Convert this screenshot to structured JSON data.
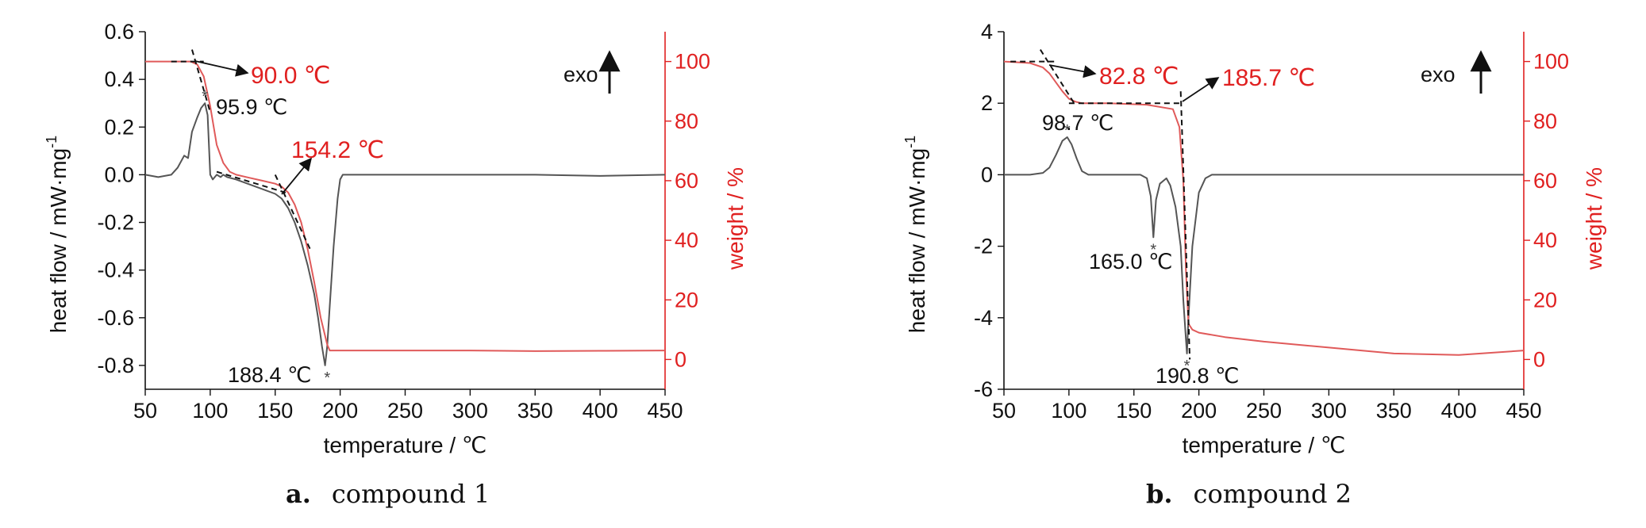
{
  "chart_data": [
    {
      "type": "line",
      "panel": "a",
      "caption_letter": "a.",
      "caption_text": "compound 1",
      "xlabel": "temperature / ℃",
      "ylabel_left": "heat flow / mW·mg",
      "ylabel_left_sup": "-1",
      "ylabel_right": "weight / %",
      "xlim": [
        50,
        450
      ],
      "ylim_left": [
        -0.9,
        0.6
      ],
      "ylim_right": [
        -10,
        110
      ],
      "x_ticks": [
        50,
        100,
        150,
        200,
        250,
        300,
        350,
        400,
        450
      ],
      "x_tick_labels": [
        "50",
        "100",
        "150",
        "200",
        "250",
        "300",
        "350",
        "400",
        "450"
      ],
      "y_left_ticks": [
        0.6,
        0.4,
        0.2,
        0.0,
        -0.2,
        -0.4,
        -0.6,
        -0.8
      ],
      "y_left_tick_labels": [
        "0.6",
        "0.4",
        "0.2",
        "0.0",
        "-0.2",
        "-0.4",
        "-0.6",
        "-0.8"
      ],
      "y_right_ticks": [
        100,
        80,
        60,
        40,
        20,
        0
      ],
      "y_right_tick_labels": [
        "100",
        "80",
        "60",
        "40",
        "20",
        "0"
      ],
      "exo_label": "exo",
      "series": [
        {
          "axis": "left",
          "color": "#555555",
          "x": [
            50,
            60,
            70,
            75,
            80,
            83,
            86,
            90,
            93,
            95.9,
            98,
            100,
            102,
            105,
            108,
            110,
            113,
            120,
            130,
            140,
            150,
            155,
            160,
            165,
            170,
            175,
            180,
            183,
            186,
            188.4,
            190,
            192,
            195,
            198,
            200,
            202,
            210,
            220,
            250,
            300,
            350,
            400,
            450
          ],
          "y": [
            0.0,
            -0.01,
            0.0,
            0.03,
            0.08,
            0.07,
            0.18,
            0.24,
            0.28,
            0.3,
            0.25,
            0.0,
            -0.02,
            0.0,
            -0.01,
            0.0,
            -0.01,
            -0.02,
            -0.04,
            -0.06,
            -0.08,
            -0.1,
            -0.14,
            -0.2,
            -0.28,
            -0.38,
            -0.5,
            -0.6,
            -0.72,
            -0.8,
            -0.72,
            -0.55,
            -0.3,
            -0.1,
            -0.02,
            0.0,
            0.0,
            0.0,
            0.0,
            0.0,
            0.0,
            -0.005,
            0.0
          ]
        },
        {
          "axis": "right",
          "color": "#e05a5a",
          "x": [
            50,
            70,
            85,
            90,
            95,
            100,
            105,
            110,
            115,
            120,
            130,
            140,
            150,
            155,
            160,
            165,
            170,
            175,
            180,
            185,
            190,
            192,
            200,
            250,
            300,
            350,
            400,
            450
          ],
          "y": [
            100,
            100,
            100,
            99,
            95,
            85,
            72,
            66,
            63,
            62,
            61,
            60,
            59,
            58,
            56,
            52,
            46,
            37,
            26,
            14,
            5,
            3,
            3,
            3,
            3,
            2.8,
            2.9,
            3
          ]
        }
      ],
      "tangent_lines": [
        {
          "points": [
            [
              70,
              100
            ],
            [
              95,
              100
            ]
          ]
        },
        {
          "points": [
            [
              86,
              104
            ],
            [
              100,
              83
            ]
          ]
        },
        {
          "points": [
            [
              105,
              63
            ],
            [
              158,
              56
            ]
          ]
        },
        {
          "points": [
            [
              150,
              62
            ],
            [
              178,
              36
            ]
          ]
        }
      ],
      "annotations": [
        {
          "text": "90.0 ℃",
          "color": "#e02020",
          "type": "onset"
        },
        {
          "text": "95.9 ℃",
          "color": "#111111",
          "type": "peak"
        },
        {
          "text": "154.2 ℃",
          "color": "#e02020",
          "type": "onset"
        },
        {
          "text": "188.4 ℃",
          "color": "#111111",
          "type": "peak"
        }
      ],
      "markers": [
        {
          "text": "*",
          "x": 95.9,
          "y": 0.3
        },
        {
          "text": "*",
          "x": 190,
          "y": -0.8
        }
      ]
    },
    {
      "type": "line",
      "panel": "b",
      "caption_letter": "b.",
      "caption_text": "compound 2",
      "xlabel": "temperature / ℃",
      "ylabel_left": "heat flow / mW·mg",
      "ylabel_left_sup": "-1",
      "ylabel_right": "weight / %",
      "xlim": [
        50,
        450
      ],
      "ylim_left": [
        -6,
        4
      ],
      "ylim_right": [
        -10,
        110
      ],
      "x_ticks": [
        50,
        100,
        150,
        200,
        250,
        300,
        350,
        400,
        450
      ],
      "x_tick_labels": [
        "50",
        "100",
        "150",
        "200",
        "250",
        "300",
        "350",
        "400",
        "450"
      ],
      "y_left_ticks": [
        4,
        2,
        0,
        -2,
        -4,
        -6
      ],
      "y_left_tick_labels": [
        "4",
        "2",
        "0",
        "-2",
        "-4",
        "-6"
      ],
      "y_right_ticks": [
        100,
        80,
        60,
        40,
        20,
        0
      ],
      "y_right_tick_labels": [
        "100",
        "80",
        "60",
        "40",
        "20",
        "0"
      ],
      "exo_label": "exo",
      "series": [
        {
          "axis": "left",
          "color": "#555555",
          "x": [
            50,
            70,
            80,
            85,
            90,
            95,
            98.7,
            102,
            106,
            110,
            115,
            120,
            140,
            155,
            160,
            163,
            165,
            167,
            170,
            175,
            178,
            182,
            186,
            188,
            190,
            190.8,
            192,
            195,
            200,
            205,
            210,
            220,
            250,
            300,
            350,
            400,
            450
          ],
          "y": [
            0.0,
            0.0,
            0.05,
            0.2,
            0.55,
            0.95,
            1.05,
            0.85,
            0.45,
            0.1,
            0.0,
            0.0,
            0.0,
            0.0,
            -0.1,
            -0.6,
            -1.75,
            -0.7,
            -0.25,
            -0.1,
            -0.3,
            -0.9,
            -2.0,
            -3.5,
            -4.6,
            -5.0,
            -4.0,
            -2.0,
            -0.5,
            -0.1,
            0.0,
            0.0,
            0.0,
            0.0,
            0.0,
            0.0,
            0.0
          ]
        },
        {
          "axis": "right",
          "color": "#e05a5a",
          "x": [
            50,
            70,
            80,
            85,
            90,
            95,
            100,
            105,
            110,
            115,
            130,
            160,
            180,
            185,
            188,
            190,
            192,
            195,
            200,
            220,
            250,
            300,
            350,
            400,
            450
          ],
          "y": [
            100,
            99.5,
            98,
            96,
            93,
            90,
            87.5,
            86.5,
            86,
            86,
            86,
            85.5,
            84,
            78,
            60,
            30,
            12,
            10,
            9,
            7.5,
            6,
            4,
            2,
            1.5,
            3
          ]
        }
      ],
      "tangent_lines": [
        {
          "points": [
            [
              55,
              100
            ],
            [
              90,
              100
            ]
          ]
        },
        {
          "points": [
            [
              78,
              104
            ],
            [
              104,
              86
            ]
          ]
        },
        {
          "points": [
            [
              100,
              86
            ],
            [
              188,
              86
            ]
          ]
        },
        {
          "points": [
            [
              186,
              90
            ],
            [
              193,
              0
            ]
          ]
        }
      ],
      "annotations": [
        {
          "text": "82.8 ℃",
          "color": "#e02020",
          "type": "onset"
        },
        {
          "text": "185.7 ℃",
          "color": "#e02020",
          "type": "onset"
        },
        {
          "text": "98.7 ℃",
          "color": "#111111",
          "type": "peak"
        },
        {
          "text": "165.0 ℃",
          "color": "#111111",
          "type": "peak"
        },
        {
          "text": "190.8 ℃",
          "color": "#111111",
          "type": "peak"
        }
      ],
      "markers": [
        {
          "text": "*",
          "x": 98.7,
          "y": 1.05
        },
        {
          "text": "*",
          "x": 165,
          "y": -1.75
        },
        {
          "text": "*",
          "x": 190.8,
          "y": -5.0
        }
      ]
    }
  ]
}
